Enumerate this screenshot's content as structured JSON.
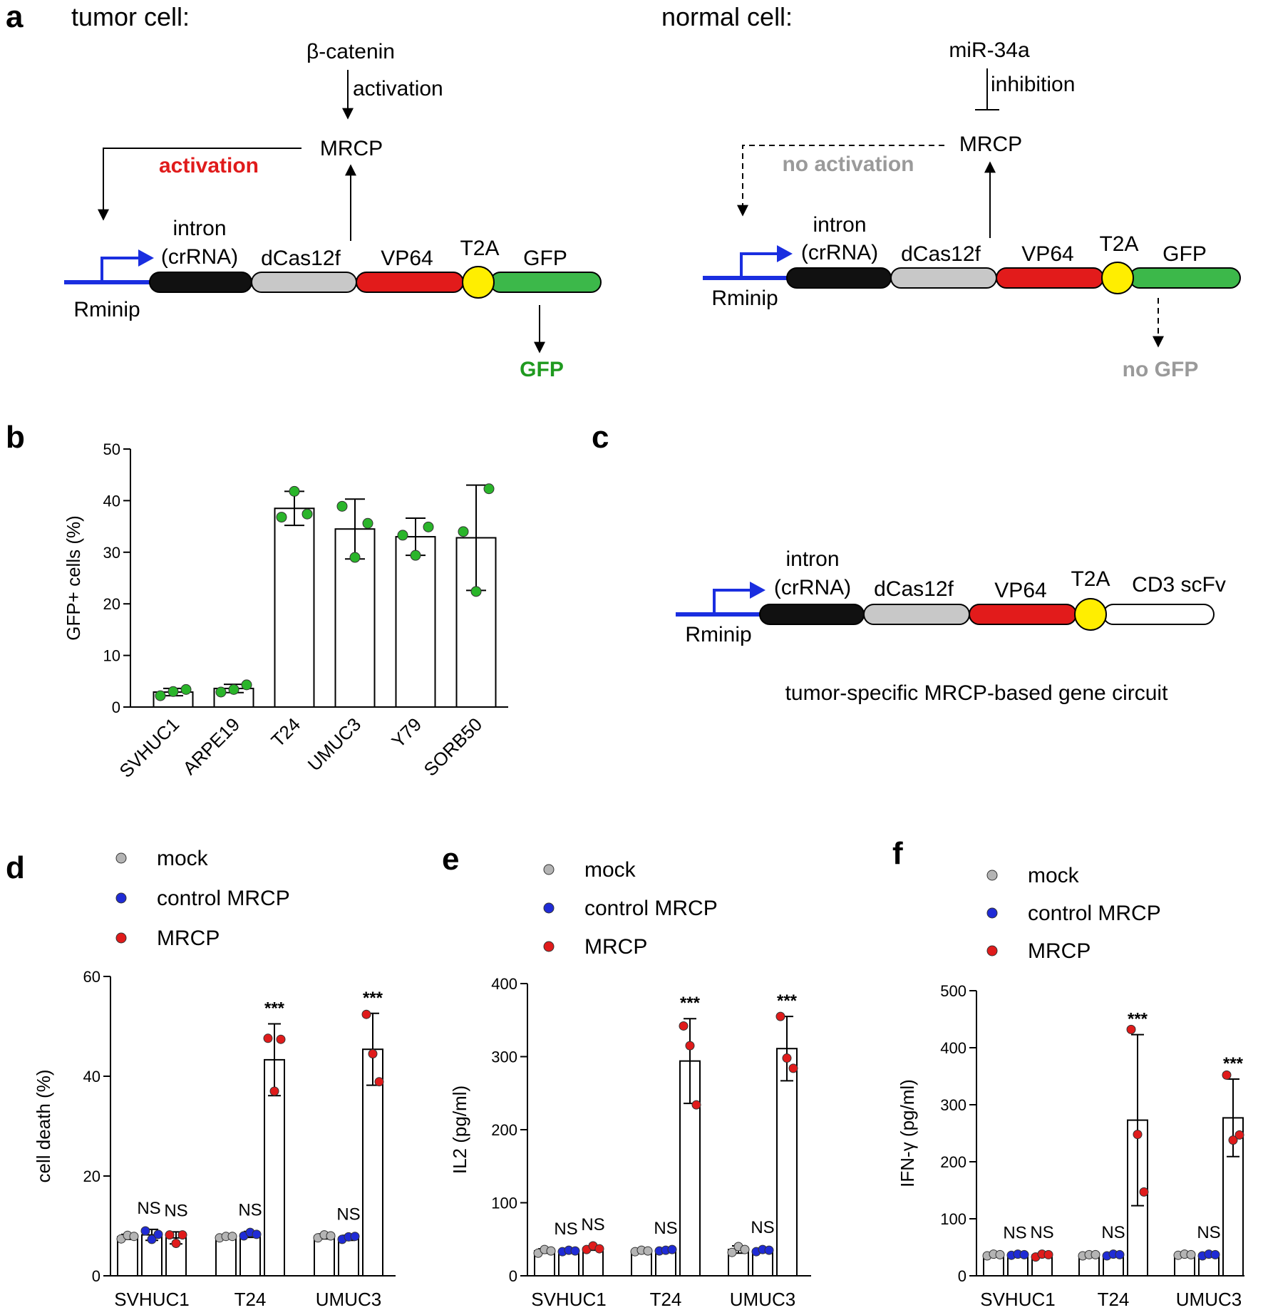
{
  "panels": {
    "a": {
      "label": "a",
      "tumor": {
        "title": "tumor cell:",
        "beta_catenin": "β-catenin",
        "activation_top": "activation",
        "mrcp": "MRCP",
        "activation_side": "activation",
        "rminip": "Rminip",
        "intron": "intron",
        "crrna": "(crRNA)",
        "dcas": "dCas12f",
        "vp64": "VP64",
        "t2a": "T2A",
        "gfp": "GFP",
        "output": "GFP"
      },
      "normal": {
        "title": "normal cell:",
        "mir": "miR-34a",
        "inhibition": "inhibition",
        "mrcp": "MRCP",
        "no_activation": "no activation",
        "rminip": "Rminip",
        "intron": "intron",
        "crrna": "(crRNA)",
        "dcas": "dCas12f",
        "vp64": "VP64",
        "t2a": "T2A",
        "gfp": "GFP",
        "output": "no GFP"
      }
    },
    "b": {
      "label": "b"
    },
    "c": {
      "label": "c",
      "intron": "intron",
      "crrna": "(crRNA)",
      "dcas": "dCas12f",
      "vp64": "VP64",
      "t2a": "T2A",
      "cd3": "CD3 scFv",
      "rminip": "Rminip",
      "caption": "tumor-specific MRCP-based gene circuit"
    },
    "d": {
      "label": "d"
    },
    "e": {
      "label": "e"
    },
    "f": {
      "label": "f"
    }
  },
  "colors": {
    "mock": "#b4b4b4",
    "control": "#1f2bd6",
    "mrcp": "#e01b1b",
    "green": "#2ab52a",
    "activation_red": "#e01b1b",
    "gfp_green": "#1f9a1f",
    "grey_text": "#9a9a9a",
    "promoter_blue": "#1a2ee0",
    "intron_black": "#111111",
    "dcas_grey": "#c8c8c8",
    "vp64_red": "#e21b1b",
    "t2a_yellow": "#ffee00",
    "gfp_fill": "#3cb84a",
    "cd3_fill": "#ffffff"
  },
  "chart_data": [
    {
      "id": "b",
      "type": "bar",
      "ylabel": "GFP+ cells (%)",
      "ylim": [
        0,
        50
      ],
      "yticks": [
        0,
        10,
        20,
        30,
        40,
        50
      ],
      "categories": [
        "SVHUC1",
        "ARPE19",
        "T24",
        "UMUC3",
        "Y79",
        "SORB50"
      ],
      "values": [
        2.9,
        3.6,
        38.5,
        34.5,
        33.0,
        32.8
      ],
      "errors": [
        0.7,
        0.8,
        3.3,
        5.8,
        3.6,
        10.2
      ],
      "points": [
        [
          2.2,
          3.0,
          3.4
        ],
        [
          2.9,
          3.4,
          4.3
        ],
        [
          36.8,
          41.8,
          37.4
        ],
        [
          38.9,
          29.0,
          35.6
        ],
        [
          33.3,
          29.4,
          34.9
        ],
        [
          34.0,
          22.4,
          42.3
        ]
      ],
      "point_color": "#2ab52a"
    },
    {
      "id": "d",
      "type": "bar",
      "ylabel": "cell death (%)",
      "ylim": [
        0,
        60
      ],
      "yticks": [
        0,
        20,
        40,
        60
      ],
      "categories": [
        "SVHUC1",
        "T24",
        "UMUC3"
      ],
      "series": [
        {
          "name": "mock",
          "values": [
            7.8,
            7.8,
            7.9
          ],
          "errors": [
            0.5,
            0.4,
            0.5
          ],
          "points": [
            [
              7.4,
              8.1,
              7.9
            ],
            [
              7.6,
              7.9,
              7.9
            ],
            [
              7.6,
              8.2,
              8.0
            ]
          ]
        },
        {
          "name": "control MRCP",
          "values": [
            8.2,
            8.3,
            7.6
          ],
          "errors": [
            1.1,
            0.6,
            0.5
          ],
          "points": [
            [
              9.0,
              7.3,
              8.3
            ],
            [
              8.0,
              8.7,
              8.3
            ],
            [
              7.3,
              7.8,
              7.9
            ]
          ]
        },
        {
          "name": "MRCP",
          "values": [
            7.6,
            43.3,
            45.4
          ],
          "errors": [
            1.2,
            7.2,
            7.2
          ],
          "points": [
            [
              8.2,
              6.5,
              8.2
            ],
            [
              47.6,
              37.0,
              47.4
            ],
            [
              52.4,
              44.5,
              38.9
            ]
          ]
        }
      ],
      "annotations": [
        [
          "NS",
          "NS"
        ],
        [
          "NS",
          "***"
        ],
        [
          "NS",
          "***"
        ]
      ]
    },
    {
      "id": "e",
      "type": "bar",
      "ylabel": "IL2 (pg/ml)",
      "ylim": [
        0,
        400
      ],
      "yticks": [
        0,
        100,
        200,
        300,
        400
      ],
      "categories": [
        "SVHUC1",
        "T24",
        "UMUC3"
      ],
      "series": [
        {
          "name": "mock",
          "values": [
            34,
            34,
            36
          ],
          "errors": [
            3,
            2,
            5
          ],
          "points": [
            [
              31,
              36,
              34
            ],
            [
              33,
              35,
              34
            ],
            [
              32,
              40,
              36
            ]
          ]
        },
        {
          "name": "control MRCP",
          "values": [
            34,
            35,
            35
          ],
          "errors": [
            1,
            1,
            2
          ],
          "points": [
            [
              33,
              35,
              34
            ],
            [
              34,
              35,
              36
            ],
            [
              33,
              36,
              35
            ]
          ]
        },
        {
          "name": "MRCP",
          "values": [
            38,
            294,
            311
          ],
          "errors": [
            3,
            58,
            44
          ],
          "points": [
            [
              36,
              41,
              37
            ],
            [
              342,
              315,
              234
            ],
            [
              355,
              298,
              284
            ]
          ]
        }
      ],
      "annotations": [
        [
          "NS",
          "NS"
        ],
        [
          "NS",
          "***"
        ],
        [
          "NS",
          "***"
        ]
      ]
    },
    {
      "id": "f",
      "type": "bar",
      "ylabel": "IFN-γ (pg/ml)",
      "ylim": [
        0,
        500
      ],
      "yticks": [
        0,
        100,
        200,
        300,
        400,
        500
      ],
      "categories": [
        "SVHUC1",
        "T24",
        "UMUC3"
      ],
      "series": [
        {
          "name": "mock",
          "values": [
            37,
            36,
            37
          ],
          "errors": [
            2,
            2,
            2
          ],
          "points": [
            [
              35,
              38,
              37
            ],
            [
              35,
              37,
              37
            ],
            [
              36,
              38,
              37
            ]
          ]
        },
        {
          "name": "control MRCP",
          "values": [
            37,
            37,
            37
          ],
          "errors": [
            1,
            2,
            2
          ],
          "points": [
            [
              36,
              38,
              37
            ],
            [
              35,
              38,
              37
            ],
            [
              35,
              38,
              37
            ]
          ]
        },
        {
          "name": "MRCP",
          "values": [
            36,
            273,
            277
          ],
          "errors": [
            3,
            150,
            68
          ],
          "points": [
            [
              33,
              38,
              37
            ],
            [
              432,
              248,
              147
            ],
            [
              352,
              238,
              247
            ]
          ]
        }
      ],
      "annotations": [
        [
          "NS",
          "NS"
        ],
        [
          "NS",
          "***"
        ],
        [
          "NS",
          "***"
        ]
      ]
    }
  ]
}
